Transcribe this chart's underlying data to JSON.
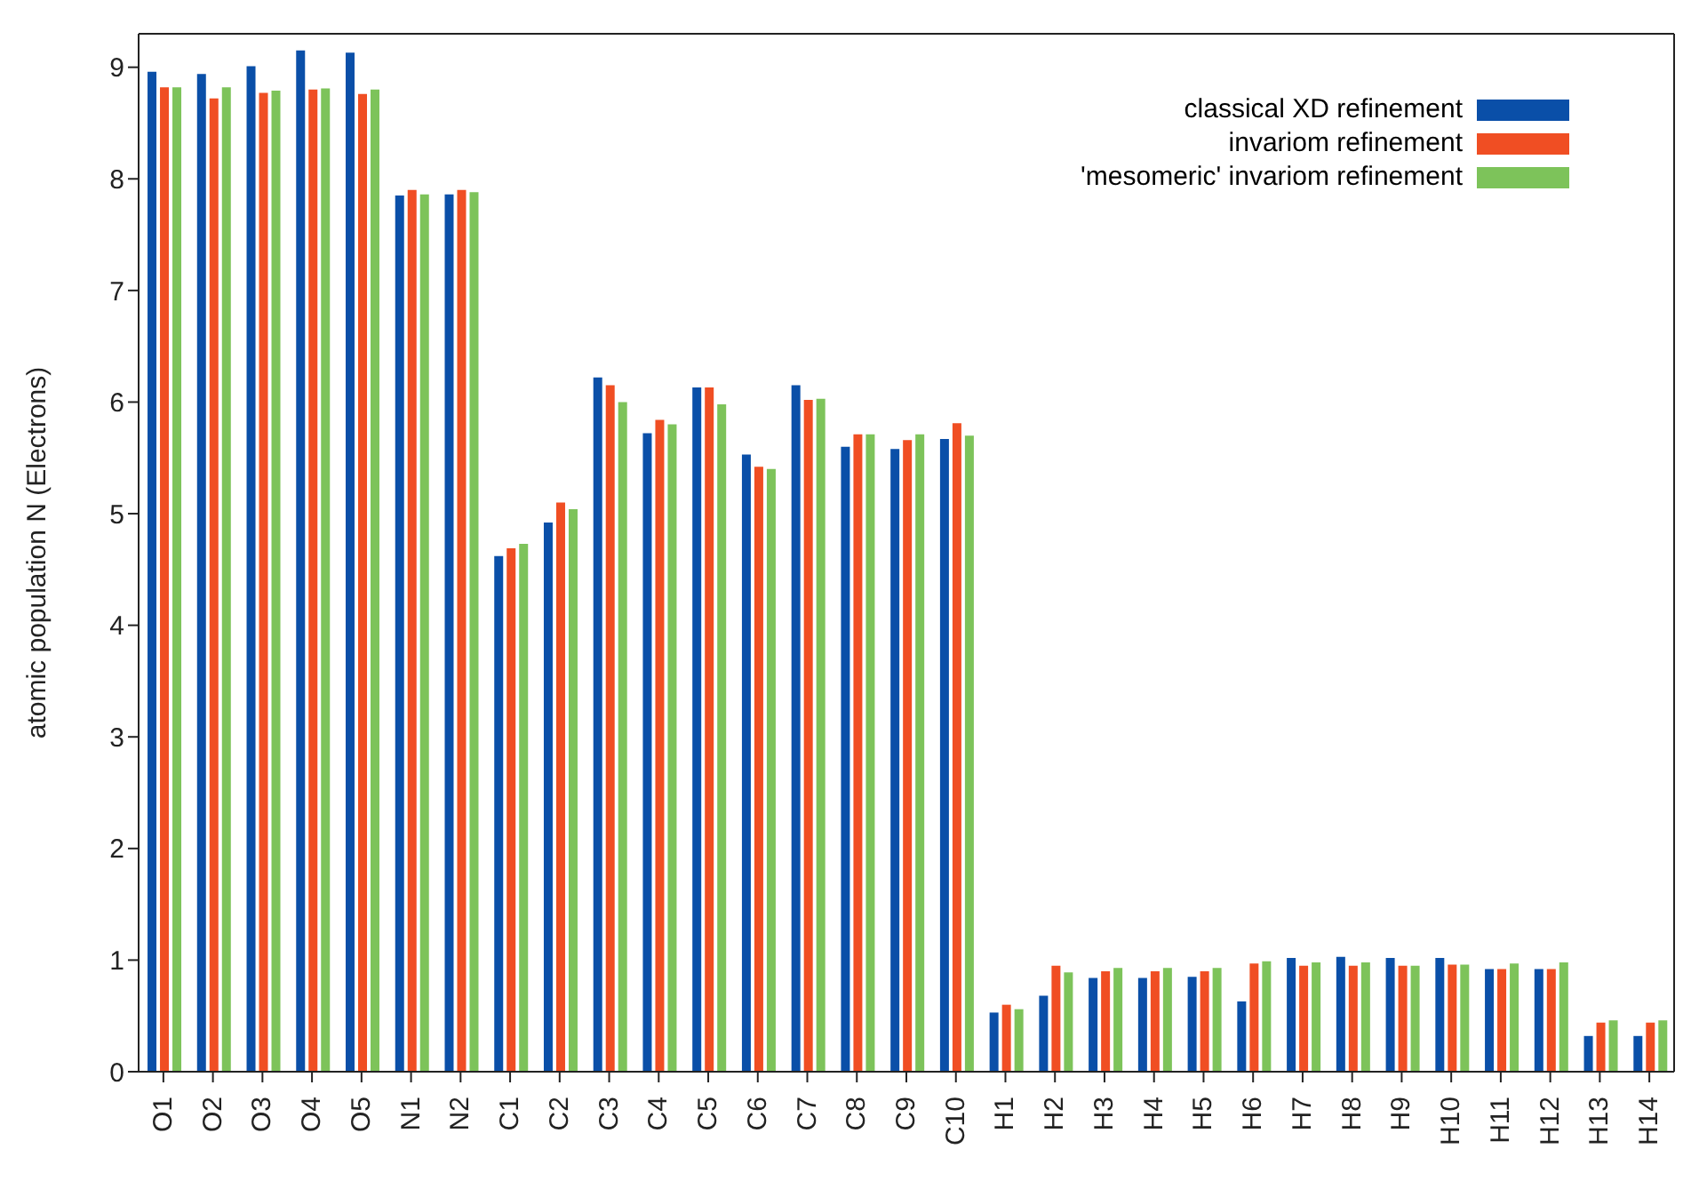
{
  "chart_data": {
    "type": "bar",
    "ylabel": "atomic population N (Electrons)",
    "categories": [
      "O1",
      "O2",
      "O3",
      "O4",
      "O5",
      "N1",
      "N2",
      "C1",
      "C2",
      "C3",
      "C4",
      "C5",
      "C6",
      "C7",
      "C8",
      "C9",
      "C10",
      "H1",
      "H2",
      "H3",
      "H4",
      "H5",
      "H6",
      "H7",
      "H8",
      "H9",
      "H10",
      "H11",
      "H12",
      "H13",
      "H14"
    ],
    "series": [
      {
        "name": "classical XD refinement",
        "color": "#0a4fa8",
        "values": [
          8.96,
          8.94,
          9.01,
          9.15,
          9.13,
          7.85,
          7.86,
          4.62,
          4.92,
          6.22,
          5.72,
          6.13,
          5.53,
          6.15,
          5.6,
          5.58,
          5.67,
          0.53,
          0.68,
          0.84,
          0.84,
          0.85,
          0.63,
          1.02,
          1.03,
          1.02,
          1.02,
          0.92,
          0.92,
          0.32,
          0.32
        ]
      },
      {
        "name": "invariom refinement",
        "color": "#f04e23",
        "values": [
          8.82,
          8.72,
          8.77,
          8.8,
          8.76,
          7.9,
          7.9,
          4.69,
          5.1,
          6.15,
          5.84,
          6.13,
          5.42,
          6.02,
          5.71,
          5.66,
          5.81,
          0.6,
          0.95,
          0.9,
          0.9,
          0.9,
          0.97,
          0.95,
          0.95,
          0.95,
          0.96,
          0.92,
          0.92,
          0.44,
          0.44
        ]
      },
      {
        "name": "'mesomeric' invariom refinement",
        "color": "#7dc35a",
        "values": [
          8.82,
          8.82,
          8.79,
          8.81,
          8.8,
          7.86,
          7.88,
          4.73,
          5.04,
          6.0,
          5.8,
          5.98,
          5.4,
          6.03,
          5.71,
          5.71,
          5.7,
          0.56,
          0.89,
          0.93,
          0.93,
          0.93,
          0.99,
          0.98,
          0.98,
          0.95,
          0.96,
          0.97,
          0.98,
          0.46,
          0.46
        ]
      }
    ],
    "ylim": [
      0,
      9.3
    ],
    "yticks": [
      0,
      1,
      2,
      3,
      4,
      5,
      6,
      7,
      8,
      9
    ],
    "grid": false,
    "legend": "top right"
  }
}
